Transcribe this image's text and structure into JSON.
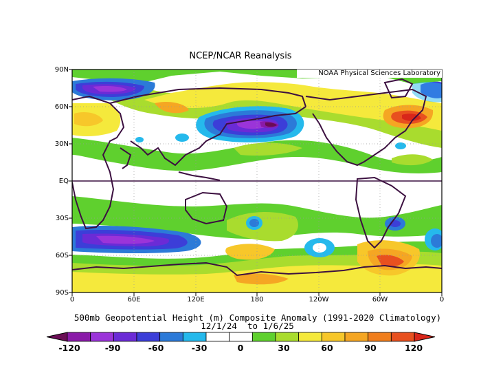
{
  "title": "NCEP/NCAR Reanalysis",
  "credit": "NOAA Physical Sciences Laboratory",
  "caption_line1": "500mb Geopotential Height (m) Composite Anomaly (1991-2020 Climatology)",
  "caption_line2": "12/1/24  to 1/6/25",
  "lat_labels": [
    "90N",
    "60N",
    "30N",
    "EQ",
    "30S",
    "60S",
    "90S"
  ],
  "lon_labels": [
    "0",
    "60E",
    "120E",
    "180",
    "120W",
    "60W",
    "0"
  ],
  "colorbar": {
    "labels": [
      "-120",
      "-90",
      "-60",
      "-30",
      "0",
      "30",
      "60",
      "90",
      "120"
    ],
    "colors": [
      "#6a0d55",
      "#8a1aa8",
      "#9b34d9",
      "#6b2bd6",
      "#3c3ed8",
      "#2c7ad8",
      "#25b9ec",
      "#ffffff",
      "#ffffff",
      "#5fd02e",
      "#a9dc2e",
      "#f5e93c",
      "#f7c72a",
      "#f5a623",
      "#f07e1d",
      "#e8501f",
      "#d8261a"
    ]
  },
  "colors": {
    "land": "#3c1040",
    "frame": "#000000"
  }
}
